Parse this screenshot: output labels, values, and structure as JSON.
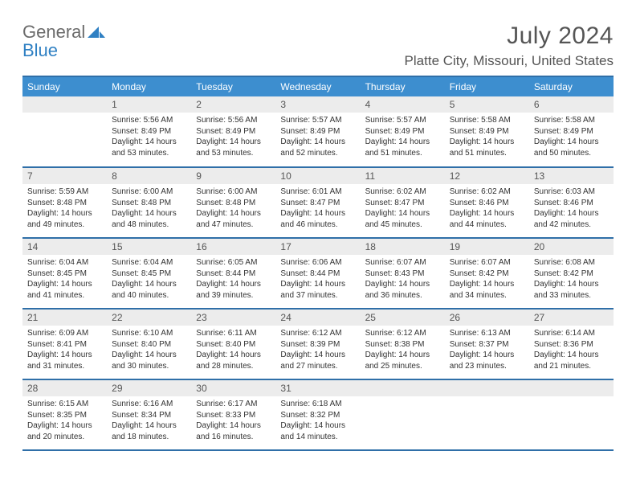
{
  "brand": {
    "word1": "General",
    "word2": "Blue"
  },
  "title": "July 2024",
  "location": "Platte City, Missouri, United States",
  "colors": {
    "header_bg": "#3d8ecf",
    "header_text": "#ffffff",
    "row_border": "#2f6fa8",
    "daynum_bg": "#ececec",
    "text": "#333333",
    "title_text": "#555555",
    "logo_gray": "#6b6b6b",
    "logo_blue": "#2f80c3"
  },
  "dayHeaders": [
    "Sunday",
    "Monday",
    "Tuesday",
    "Wednesday",
    "Thursday",
    "Friday",
    "Saturday"
  ],
  "weeks": [
    [
      null,
      {
        "n": "1",
        "sr": "Sunrise: 5:56 AM",
        "ss": "Sunset: 8:49 PM",
        "dl": "Daylight: 14 hours and 53 minutes."
      },
      {
        "n": "2",
        "sr": "Sunrise: 5:56 AM",
        "ss": "Sunset: 8:49 PM",
        "dl": "Daylight: 14 hours and 53 minutes."
      },
      {
        "n": "3",
        "sr": "Sunrise: 5:57 AM",
        "ss": "Sunset: 8:49 PM",
        "dl": "Daylight: 14 hours and 52 minutes."
      },
      {
        "n": "4",
        "sr": "Sunrise: 5:57 AM",
        "ss": "Sunset: 8:49 PM",
        "dl": "Daylight: 14 hours and 51 minutes."
      },
      {
        "n": "5",
        "sr": "Sunrise: 5:58 AM",
        "ss": "Sunset: 8:49 PM",
        "dl": "Daylight: 14 hours and 51 minutes."
      },
      {
        "n": "6",
        "sr": "Sunrise: 5:58 AM",
        "ss": "Sunset: 8:49 PM",
        "dl": "Daylight: 14 hours and 50 minutes."
      }
    ],
    [
      {
        "n": "7",
        "sr": "Sunrise: 5:59 AM",
        "ss": "Sunset: 8:48 PM",
        "dl": "Daylight: 14 hours and 49 minutes."
      },
      {
        "n": "8",
        "sr": "Sunrise: 6:00 AM",
        "ss": "Sunset: 8:48 PM",
        "dl": "Daylight: 14 hours and 48 minutes."
      },
      {
        "n": "9",
        "sr": "Sunrise: 6:00 AM",
        "ss": "Sunset: 8:48 PM",
        "dl": "Daylight: 14 hours and 47 minutes."
      },
      {
        "n": "10",
        "sr": "Sunrise: 6:01 AM",
        "ss": "Sunset: 8:47 PM",
        "dl": "Daylight: 14 hours and 46 minutes."
      },
      {
        "n": "11",
        "sr": "Sunrise: 6:02 AM",
        "ss": "Sunset: 8:47 PM",
        "dl": "Daylight: 14 hours and 45 minutes."
      },
      {
        "n": "12",
        "sr": "Sunrise: 6:02 AM",
        "ss": "Sunset: 8:46 PM",
        "dl": "Daylight: 14 hours and 44 minutes."
      },
      {
        "n": "13",
        "sr": "Sunrise: 6:03 AM",
        "ss": "Sunset: 8:46 PM",
        "dl": "Daylight: 14 hours and 42 minutes."
      }
    ],
    [
      {
        "n": "14",
        "sr": "Sunrise: 6:04 AM",
        "ss": "Sunset: 8:45 PM",
        "dl": "Daylight: 14 hours and 41 minutes."
      },
      {
        "n": "15",
        "sr": "Sunrise: 6:04 AM",
        "ss": "Sunset: 8:45 PM",
        "dl": "Daylight: 14 hours and 40 minutes."
      },
      {
        "n": "16",
        "sr": "Sunrise: 6:05 AM",
        "ss": "Sunset: 8:44 PM",
        "dl": "Daylight: 14 hours and 39 minutes."
      },
      {
        "n": "17",
        "sr": "Sunrise: 6:06 AM",
        "ss": "Sunset: 8:44 PM",
        "dl": "Daylight: 14 hours and 37 minutes."
      },
      {
        "n": "18",
        "sr": "Sunrise: 6:07 AM",
        "ss": "Sunset: 8:43 PM",
        "dl": "Daylight: 14 hours and 36 minutes."
      },
      {
        "n": "19",
        "sr": "Sunrise: 6:07 AM",
        "ss": "Sunset: 8:42 PM",
        "dl": "Daylight: 14 hours and 34 minutes."
      },
      {
        "n": "20",
        "sr": "Sunrise: 6:08 AM",
        "ss": "Sunset: 8:42 PM",
        "dl": "Daylight: 14 hours and 33 minutes."
      }
    ],
    [
      {
        "n": "21",
        "sr": "Sunrise: 6:09 AM",
        "ss": "Sunset: 8:41 PM",
        "dl": "Daylight: 14 hours and 31 minutes."
      },
      {
        "n": "22",
        "sr": "Sunrise: 6:10 AM",
        "ss": "Sunset: 8:40 PM",
        "dl": "Daylight: 14 hours and 30 minutes."
      },
      {
        "n": "23",
        "sr": "Sunrise: 6:11 AM",
        "ss": "Sunset: 8:40 PM",
        "dl": "Daylight: 14 hours and 28 minutes."
      },
      {
        "n": "24",
        "sr": "Sunrise: 6:12 AM",
        "ss": "Sunset: 8:39 PM",
        "dl": "Daylight: 14 hours and 27 minutes."
      },
      {
        "n": "25",
        "sr": "Sunrise: 6:12 AM",
        "ss": "Sunset: 8:38 PM",
        "dl": "Daylight: 14 hours and 25 minutes."
      },
      {
        "n": "26",
        "sr": "Sunrise: 6:13 AM",
        "ss": "Sunset: 8:37 PM",
        "dl": "Daylight: 14 hours and 23 minutes."
      },
      {
        "n": "27",
        "sr": "Sunrise: 6:14 AM",
        "ss": "Sunset: 8:36 PM",
        "dl": "Daylight: 14 hours and 21 minutes."
      }
    ],
    [
      {
        "n": "28",
        "sr": "Sunrise: 6:15 AM",
        "ss": "Sunset: 8:35 PM",
        "dl": "Daylight: 14 hours and 20 minutes."
      },
      {
        "n": "29",
        "sr": "Sunrise: 6:16 AM",
        "ss": "Sunset: 8:34 PM",
        "dl": "Daylight: 14 hours and 18 minutes."
      },
      {
        "n": "30",
        "sr": "Sunrise: 6:17 AM",
        "ss": "Sunset: 8:33 PM",
        "dl": "Daylight: 14 hours and 16 minutes."
      },
      {
        "n": "31",
        "sr": "Sunrise: 6:18 AM",
        "ss": "Sunset: 8:32 PM",
        "dl": "Daylight: 14 hours and 14 minutes."
      },
      null,
      null,
      null
    ]
  ]
}
